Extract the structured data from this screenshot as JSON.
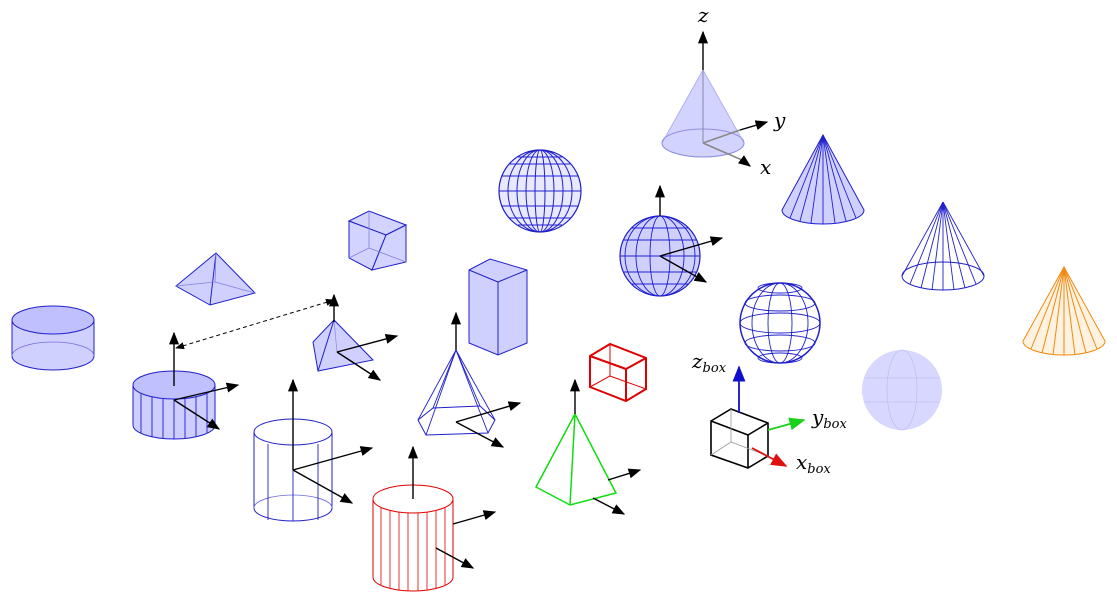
{
  "axis_labels": {
    "x": "x",
    "y": "y",
    "z": "z"
  },
  "box_axis_labels": {
    "x_base": "x",
    "y_base": "y",
    "z_base": "z",
    "subscript": "box"
  },
  "colors": {
    "blue": "#1f1fcc",
    "blue_fill": "#c8c8ff",
    "red": "#e00000",
    "green": "#10dd10",
    "orange": "#f08a10",
    "black": "#000000",
    "arrow_green": "#1ad11a",
    "arrow_red": "#e01010",
    "arrow_blue": "#1010cc"
  }
}
